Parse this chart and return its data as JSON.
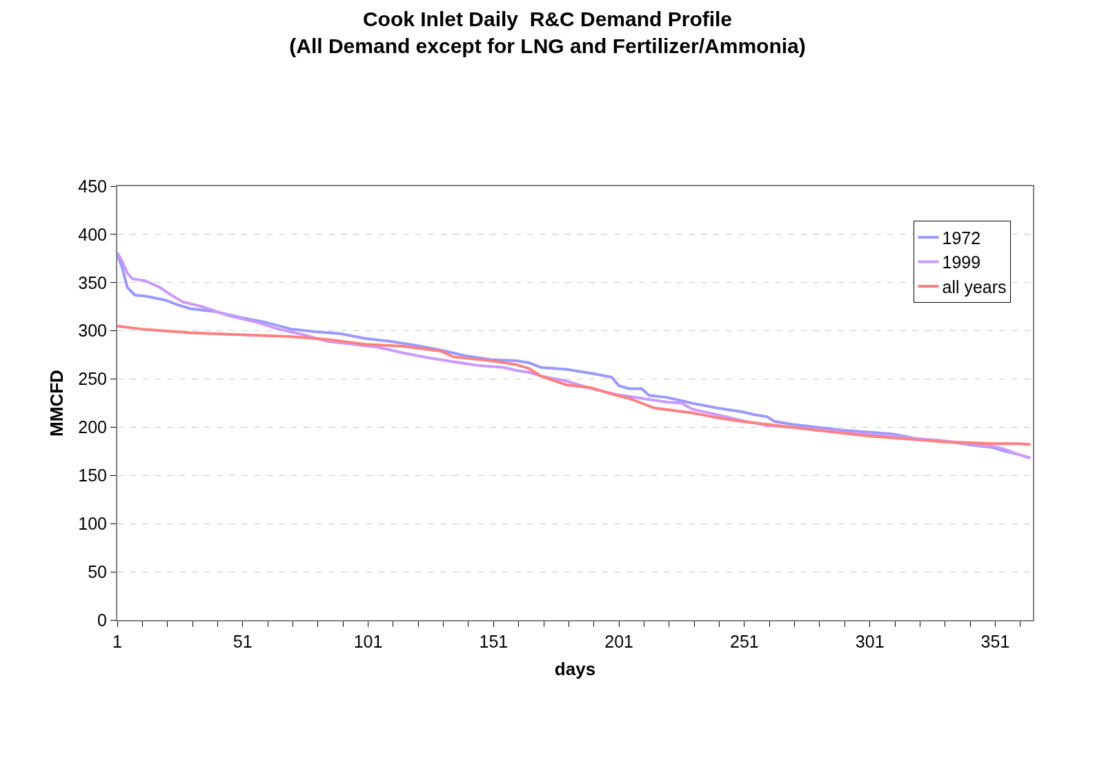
{
  "chart_data": {
    "type": "line",
    "title": "Cook Inlet Daily  R&C Demand Profile\n(All Demand except for LNG and Fertilizer/Ammonia)",
    "xlabel": "days",
    "ylabel": "MMCFD",
    "xlim": [
      1,
      366
    ],
    "xticks": [
      1,
      51,
      101,
      151,
      201,
      251,
      301,
      351
    ],
    "ylim": [
      0,
      450
    ],
    "yticks": [
      0,
      50,
      100,
      150,
      200,
      250,
      300,
      350,
      400,
      450
    ],
    "grid": "y",
    "legend": "top right",
    "marker": "none",
    "line_style": "solid",
    "series": [
      {
        "name": "1972",
        "color": "#9999ff",
        "x": [
          1,
          3,
          5,
          8,
          12,
          20,
          25,
          30,
          40,
          50,
          60,
          70,
          80,
          90,
          100,
          110,
          120,
          130,
          140,
          150,
          160,
          165,
          170,
          180,
          190,
          198,
          201,
          205,
          210,
          213,
          220,
          225,
          230,
          240,
          250,
          255,
          260,
          263,
          270,
          280,
          290,
          300,
          310,
          320,
          330,
          340,
          350,
          355,
          360,
          365
        ],
        "values": [
          380,
          365,
          345,
          337,
          336,
          332,
          327,
          323,
          320,
          314,
          309,
          302,
          299,
          297,
          292,
          289,
          285,
          280,
          274,
          270,
          269,
          267,
          262,
          260,
          256,
          252,
          243,
          240,
          240,
          233,
          231,
          228,
          225,
          220,
          216,
          213,
          211,
          206,
          203,
          200,
          197,
          195,
          193,
          188,
          186,
          182,
          179,
          175,
          172,
          168
        ]
      },
      {
        "name": "1999",
        "color": "#cc99ff",
        "x": [
          1,
          3,
          5,
          7,
          12,
          18,
          22,
          27,
          35,
          45,
          55,
          65,
          75,
          85,
          95,
          105,
          115,
          125,
          135,
          145,
          155,
          160,
          165,
          170,
          180,
          190,
          200,
          210,
          220,
          226,
          230,
          240,
          250,
          260,
          270,
          280,
          290,
          300,
          310,
          320,
          330,
          340,
          350,
          355,
          360,
          365
        ],
        "values": [
          381,
          372,
          360,
          354,
          352,
          345,
          338,
          330,
          325,
          316,
          310,
          302,
          296,
          289,
          286,
          283,
          277,
          272,
          268,
          264,
          262,
          259,
          257,
          253,
          248,
          240,
          234,
          230,
          226,
          225,
          219,
          213,
          207,
          202,
          200,
          198,
          195,
          193,
          191,
          188,
          186,
          183,
          180,
          177,
          172,
          168
        ]
      },
      {
        "name": "all years",
        "color": "#ff8080",
        "x": [
          1,
          10,
          20,
          30,
          50,
          70,
          85,
          100,
          115,
          130,
          135,
          150,
          160,
          165,
          170,
          180,
          190,
          200,
          205,
          210,
          215,
          230,
          240,
          250,
          260,
          270,
          280,
          290,
          300,
          310,
          320,
          330,
          340,
          350,
          360,
          365
        ],
        "values": [
          305,
          302,
          300,
          298,
          296,
          294,
          291,
          286,
          284,
          279,
          273,
          269,
          265,
          261,
          253,
          244,
          241,
          233,
          230,
          225,
          220,
          215,
          210,
          206,
          203,
          200,
          197,
          194,
          191,
          189,
          187,
          185,
          184,
          183,
          183,
          182
        ]
      }
    ]
  }
}
